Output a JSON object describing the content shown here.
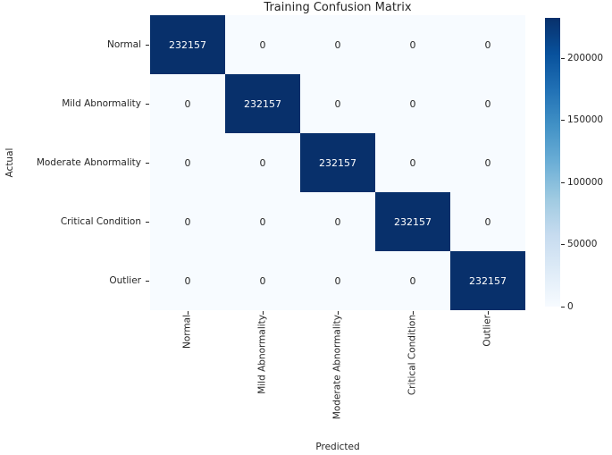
{
  "chart_data": {
    "type": "heatmap",
    "title": "Training Confusion Matrix",
    "xlabel": "Predicted",
    "ylabel": "Actual",
    "x_categories": [
      "Normal",
      "Mild Abnormality",
      "Moderate Abnormality",
      "Critical Condition",
      "Outlier"
    ],
    "y_categories": [
      "Normal",
      "Mild Abnormality",
      "Moderate Abnormality",
      "Critical Condition",
      "Outlier"
    ],
    "matrix": [
      [
        232157,
        0,
        0,
        0,
        0
      ],
      [
        0,
        232157,
        0,
        0,
        0
      ],
      [
        0,
        0,
        232157,
        0,
        0
      ],
      [
        0,
        0,
        0,
        232157,
        0
      ],
      [
        0,
        0,
        0,
        0,
        232157
      ]
    ],
    "vmin": 0,
    "vmax": 232157,
    "colormap": "Blues",
    "colormap_stops": [
      "#f7fbff",
      "#deebf7",
      "#c6dbef",
      "#9ecae1",
      "#6baed6",
      "#4292c6",
      "#2171b5",
      "#08519c",
      "#08306b"
    ],
    "colorbar_ticks": [
      0,
      50000,
      100000,
      150000,
      200000
    ],
    "colors": {
      "cell_high": "#08306b",
      "cell_low": "#f7fbff",
      "annotation_light": "#ffffff",
      "annotation_dark": "#262626",
      "tick": "#262626",
      "background": "#ffffff"
    },
    "legend_position": "right-colorbar",
    "grid": false
  }
}
